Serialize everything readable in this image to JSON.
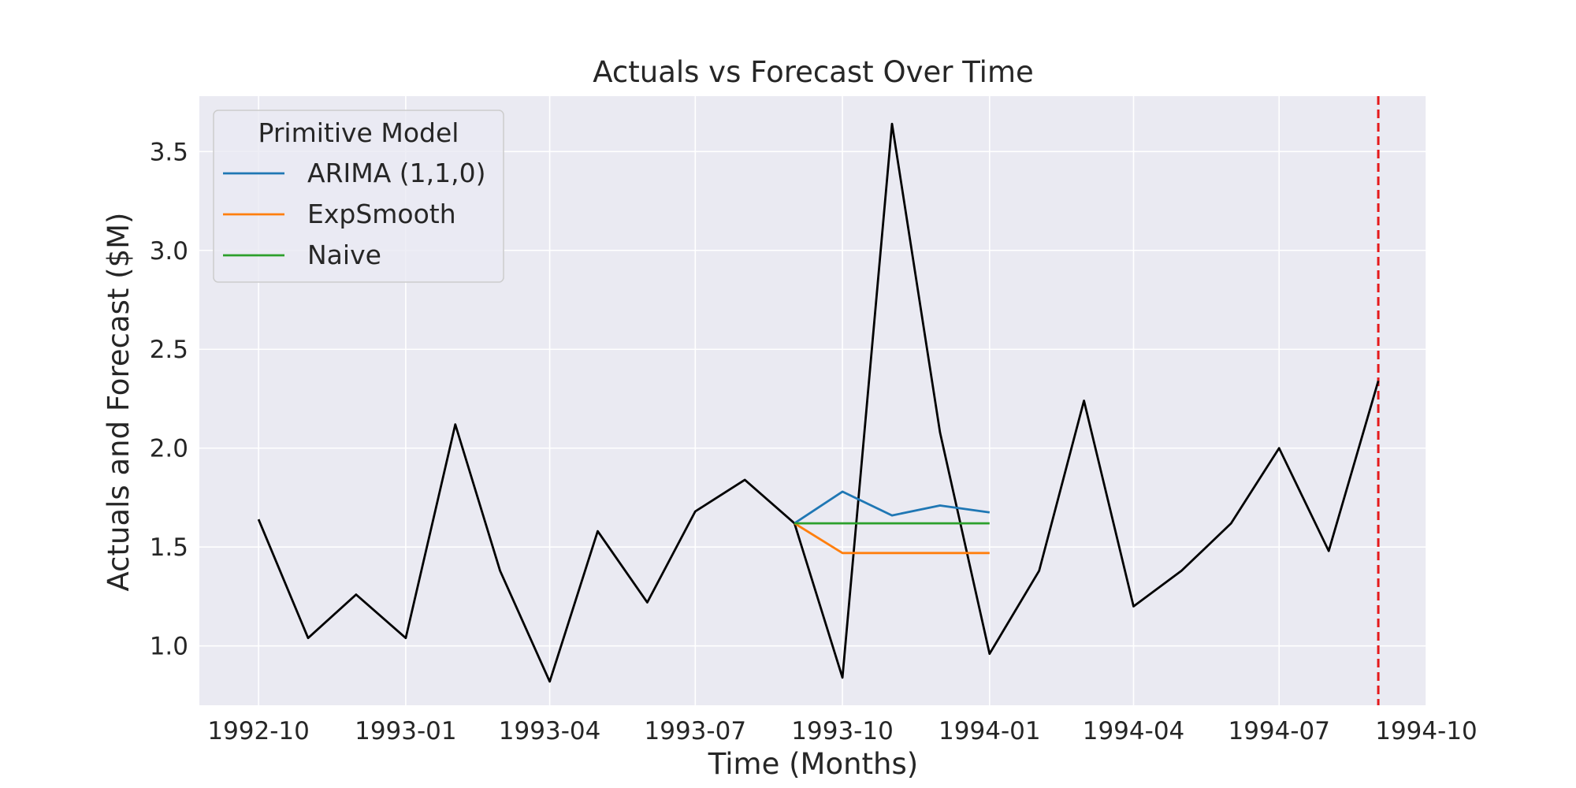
{
  "chart_data": {
    "type": "line",
    "title": "Actuals vs Forecast Over Time",
    "xlabel": "Time (Months)",
    "ylabel": "Actuals and Forecast ($M)",
    "grid": true,
    "xlim": [
      "1992-08-25",
      "1994-10-01"
    ],
    "ylim": [
      0.7,
      3.78
    ],
    "x_ticks": [
      "1992-10",
      "1993-01",
      "1993-04",
      "1993-07",
      "1993-10",
      "1994-01",
      "1994-04",
      "1994-07",
      "1994-10"
    ],
    "y_ticks": [
      "1.0",
      "1.5",
      "2.0",
      "2.5",
      "3.0",
      "3.5"
    ],
    "legend": {
      "title": "Primitive Model",
      "placement": "top-left"
    },
    "actuals": {
      "color": "#000000",
      "x": [
        "1992-10",
        "1992-11",
        "1992-12",
        "1993-01",
        "1993-02",
        "1993-03",
        "1993-04",
        "1993-05",
        "1993-06",
        "1993-07",
        "1993-08",
        "1993-09",
        "1993-10",
        "1993-11",
        "1993-12",
        "1994-01",
        "1994-02",
        "1994-03",
        "1994-04",
        "1994-05",
        "1994-06",
        "1994-07",
        "1994-08",
        "1994-09"
      ],
      "values": [
        1.64,
        1.04,
        1.26,
        1.04,
        2.12,
        1.38,
        0.82,
        1.58,
        1.22,
        1.68,
        1.84,
        1.62,
        0.84,
        3.64,
        2.08,
        0.96,
        1.38,
        2.24,
        1.2,
        1.38,
        1.62,
        2.0,
        1.48,
        2.34
      ]
    },
    "series": [
      {
        "name": "ARIMA (1,1,0)",
        "color": "#1f77b4",
        "x": [
          "1993-09",
          "1993-10",
          "1993-11",
          "1993-12",
          "1994-01"
        ],
        "values": [
          1.62,
          1.78,
          1.66,
          1.71,
          1.675
        ]
      },
      {
        "name": "ExpSmooth",
        "color": "#ff7f0e",
        "x": [
          "1993-09",
          "1993-10",
          "1993-11",
          "1993-12",
          "1994-01"
        ],
        "values": [
          1.62,
          1.47,
          1.47,
          1.47,
          1.47
        ]
      },
      {
        "name": "Naive",
        "color": "#2ca02c",
        "x": [
          "1993-09",
          "1993-10",
          "1993-11",
          "1993-12",
          "1994-01"
        ],
        "values": [
          1.62,
          1.62,
          1.62,
          1.62,
          1.62
        ]
      }
    ],
    "vline": {
      "x": "1994-09",
      "color": "#e41a1c",
      "style": "dashed"
    },
    "colors": {
      "plot_background": "#eaeaf2",
      "grid": "#ffffff",
      "text": "#262626"
    }
  }
}
